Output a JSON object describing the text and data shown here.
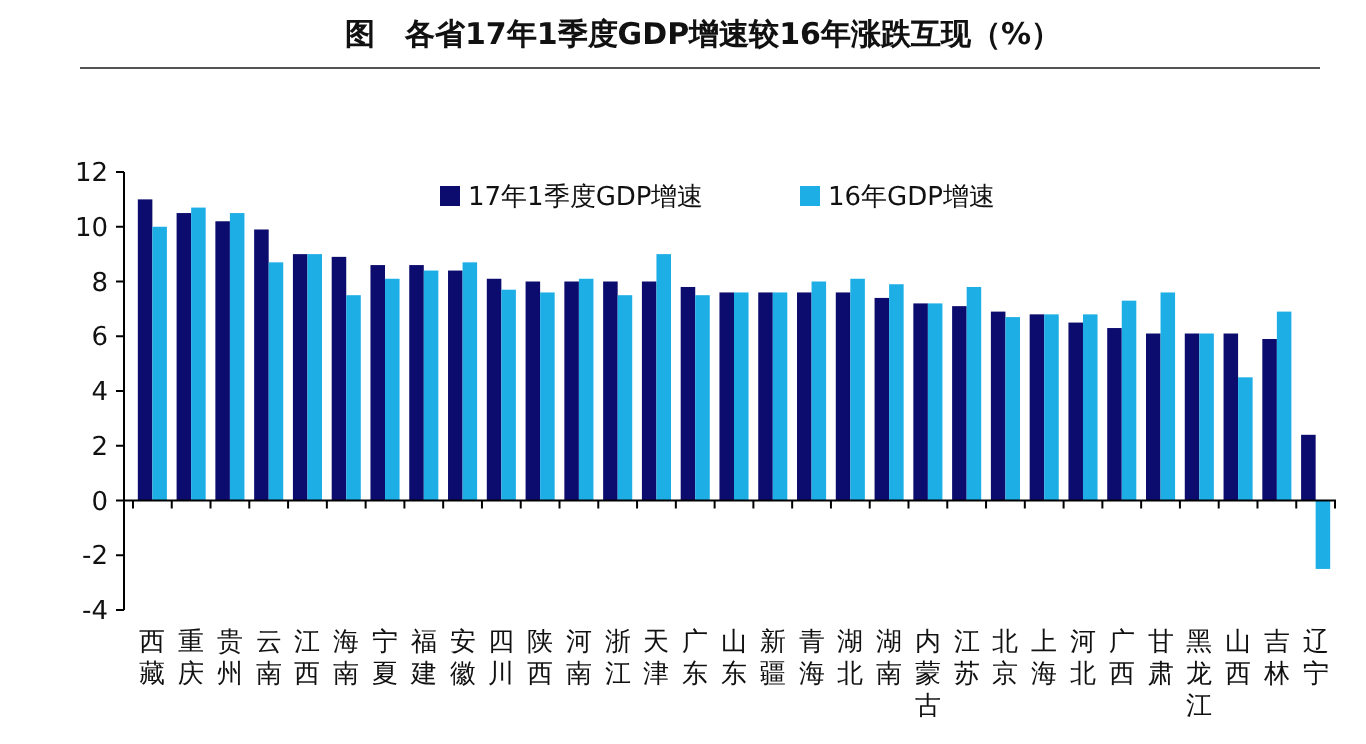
{
  "chart_data": {
    "type": "bar",
    "title": "图　各省17年1季度GDP增速较16年涨跌互现（%）",
    "categories": [
      "西藏",
      "重庆",
      "贵州",
      "云南",
      "江西",
      "海南",
      "宁夏",
      "福建",
      "安徽",
      "四川",
      "陕西",
      "河南",
      "浙江",
      "天津",
      "广东",
      "山东",
      "新疆",
      "青海",
      "湖北",
      "湖南",
      "内蒙古",
      "江苏",
      "北京",
      "上海",
      "河北",
      "广西",
      "甘肃",
      "黑龙江",
      "山西",
      "吉林",
      "辽宁"
    ],
    "series": [
      {
        "name": "17年1季度GDP增速",
        "color": "#0c0c6e",
        "values": [
          11.0,
          10.5,
          10.2,
          9.9,
          9.0,
          8.9,
          8.6,
          8.6,
          8.4,
          8.1,
          8.0,
          8.0,
          8.0,
          8.0,
          7.8,
          7.6,
          7.6,
          7.6,
          7.6,
          7.4,
          7.2,
          7.1,
          6.9,
          6.8,
          6.5,
          6.3,
          6.1,
          6.1,
          6.1,
          5.9,
          2.4
        ]
      },
      {
        "name": "16年GDP增速",
        "color": "#1eaee6",
        "values": [
          10.0,
          10.7,
          10.5,
          8.7,
          9.0,
          7.5,
          8.1,
          8.4,
          8.7,
          7.7,
          7.6,
          8.1,
          7.5,
          9.0,
          7.5,
          7.6,
          7.6,
          8.0,
          8.1,
          7.9,
          7.2,
          7.8,
          6.7,
          6.8,
          6.8,
          7.3,
          7.6,
          6.1,
          4.5,
          6.9,
          -2.5
        ]
      }
    ],
    "ylim": [
      -4,
      12
    ],
    "yticks": [
      -4,
      -2,
      0,
      2,
      4,
      6,
      8,
      10,
      12
    ],
    "legend": "top"
  }
}
